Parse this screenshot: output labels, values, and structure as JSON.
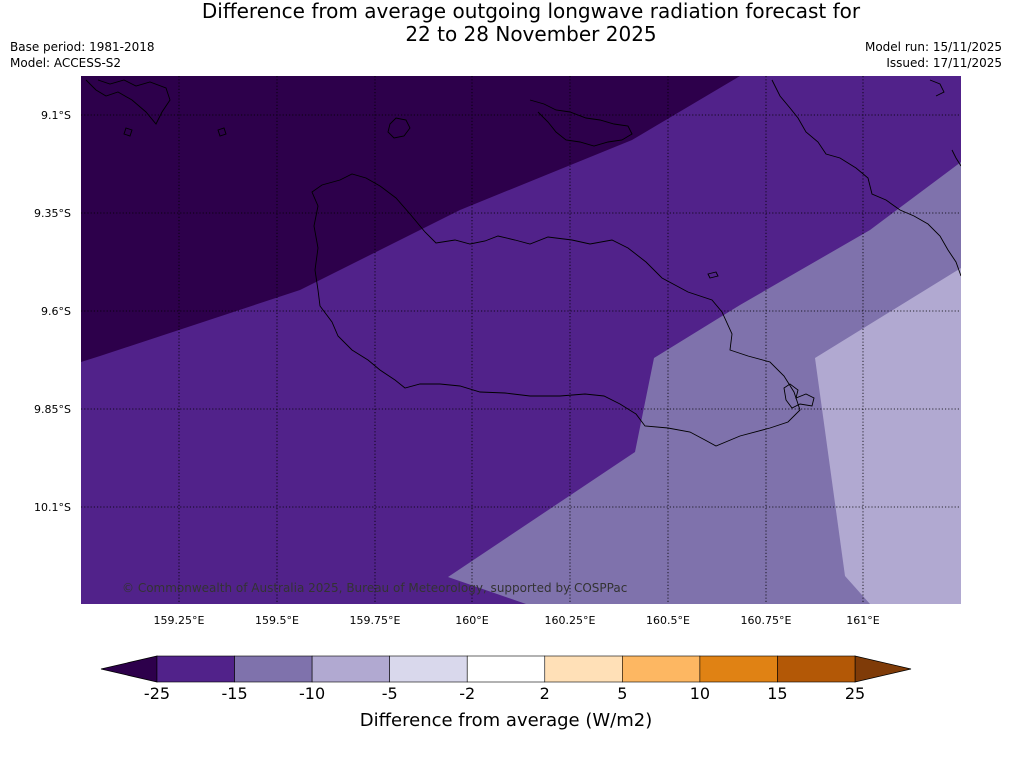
{
  "title": {
    "line1": "Difference from average outgoing longwave radiation forecast for",
    "line2": "22 to 28 November 2025"
  },
  "meta": {
    "base_period": "Base period: 1981-2018",
    "model": "Model: ACCESS-S2",
    "model_run": "Model run: 15/11/2025",
    "issued": "Issued: 17/11/2025"
  },
  "map": {
    "latitudes": [
      "9.1°S",
      "9.35°S",
      "9.6°S",
      "9.85°S",
      "10.1°S"
    ],
    "longitudes": [
      "159.25°E",
      "159.5°E",
      "159.75°E",
      "160°E",
      "160.25°E",
      "160.5°E",
      "160.75°E",
      "161°E"
    ],
    "copyright": "© Commonwealth of Australia 2025, Bureau of Meteorology, supported by COSPPac"
  },
  "colorbar": {
    "title": "Difference from average (W/m2)",
    "ticks": [
      "-25",
      "-15",
      "-10",
      "-5",
      "-2",
      "2",
      "5",
      "10",
      "15",
      "25"
    ],
    "colors": [
      "#51228a",
      "#7f72ac",
      "#b1a9d1",
      "#d9d8ec",
      "#ffffff",
      "#ffe0b7",
      "#fdb762",
      "#e08214",
      "#b35806"
    ],
    "under_color": "#2d004b",
    "over_color": "#7f3b08"
  }
}
